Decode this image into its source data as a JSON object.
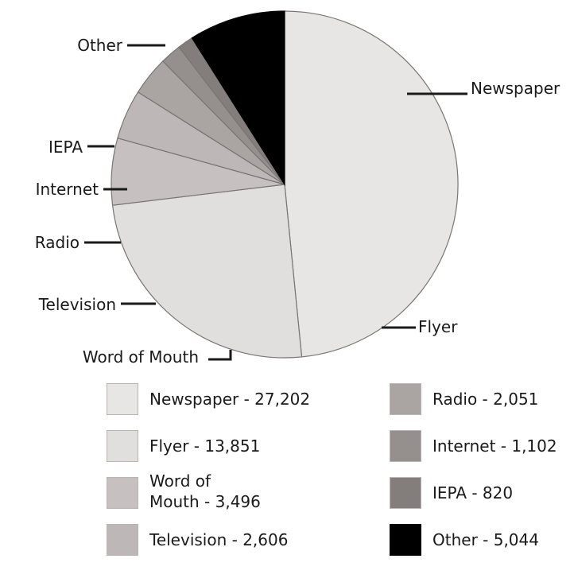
{
  "chart_data": {
    "type": "pie",
    "title": "",
    "categories": [
      "Newspaper",
      "Flyer",
      "Word of Mouth",
      "Television",
      "Radio",
      "Internet",
      "IEPA",
      "Other"
    ],
    "values": [
      27202,
      13851,
      3496,
      2606,
      2051,
      1102,
      820,
      5044
    ],
    "colors": [
      "#e8e6e5",
      "#e1dfde",
      "#c6c1c0",
      "#bdb8b7",
      "#aaa5a3",
      "#958f8e",
      "#837d7c",
      "#000000"
    ],
    "slice_labels": [
      "Newspaper",
      "Flyer",
      "Word of Mouth",
      "Television",
      "Radio",
      "Internet",
      "IEPA",
      "Other"
    ],
    "legend": [
      "Newspaper - 27,202",
      "Flyer - 13,851",
      "Word of Mouth - 3,496",
      "Television - 2,606",
      "Radio - 2,051",
      "Internet - 1,102",
      "IEPA - 820",
      "Other - 5,044"
    ],
    "legend_position": "bottom"
  }
}
